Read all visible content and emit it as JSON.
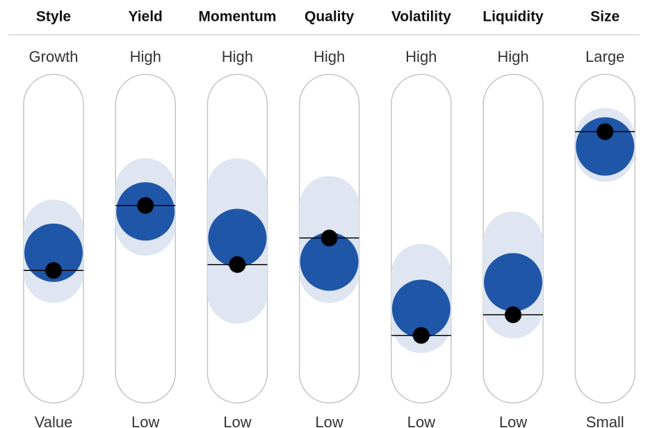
{
  "chart_data": {
    "type": "factor_profile",
    "categories": [
      "Style",
      "Yield",
      "Momentum",
      "Quality",
      "Volatility",
      "Liquidity",
      "Size"
    ],
    "top_labels": [
      "Growth",
      "High",
      "High",
      "High",
      "High",
      "High",
      "Large"
    ],
    "bottom_labels": [
      "Value",
      "Low",
      "Low",
      "Low",
      "Low",
      "Low",
      "Small"
    ],
    "values": [
      39,
      61,
      41,
      50,
      17,
      24,
      86
    ],
    "centers": [
      45,
      59,
      50,
      42,
      26,
      35,
      81
    ],
    "range_high": [
      63,
      77,
      77,
      71,
      48,
      59,
      94
    ],
    "range_low": [
      28,
      44,
      21,
      28,
      11,
      16,
      69
    ],
    "ylim": [
      0,
      100
    ],
    "color": "#000000",
    "center_color": "#1f56a8",
    "range_color": "#dfe6f1"
  }
}
